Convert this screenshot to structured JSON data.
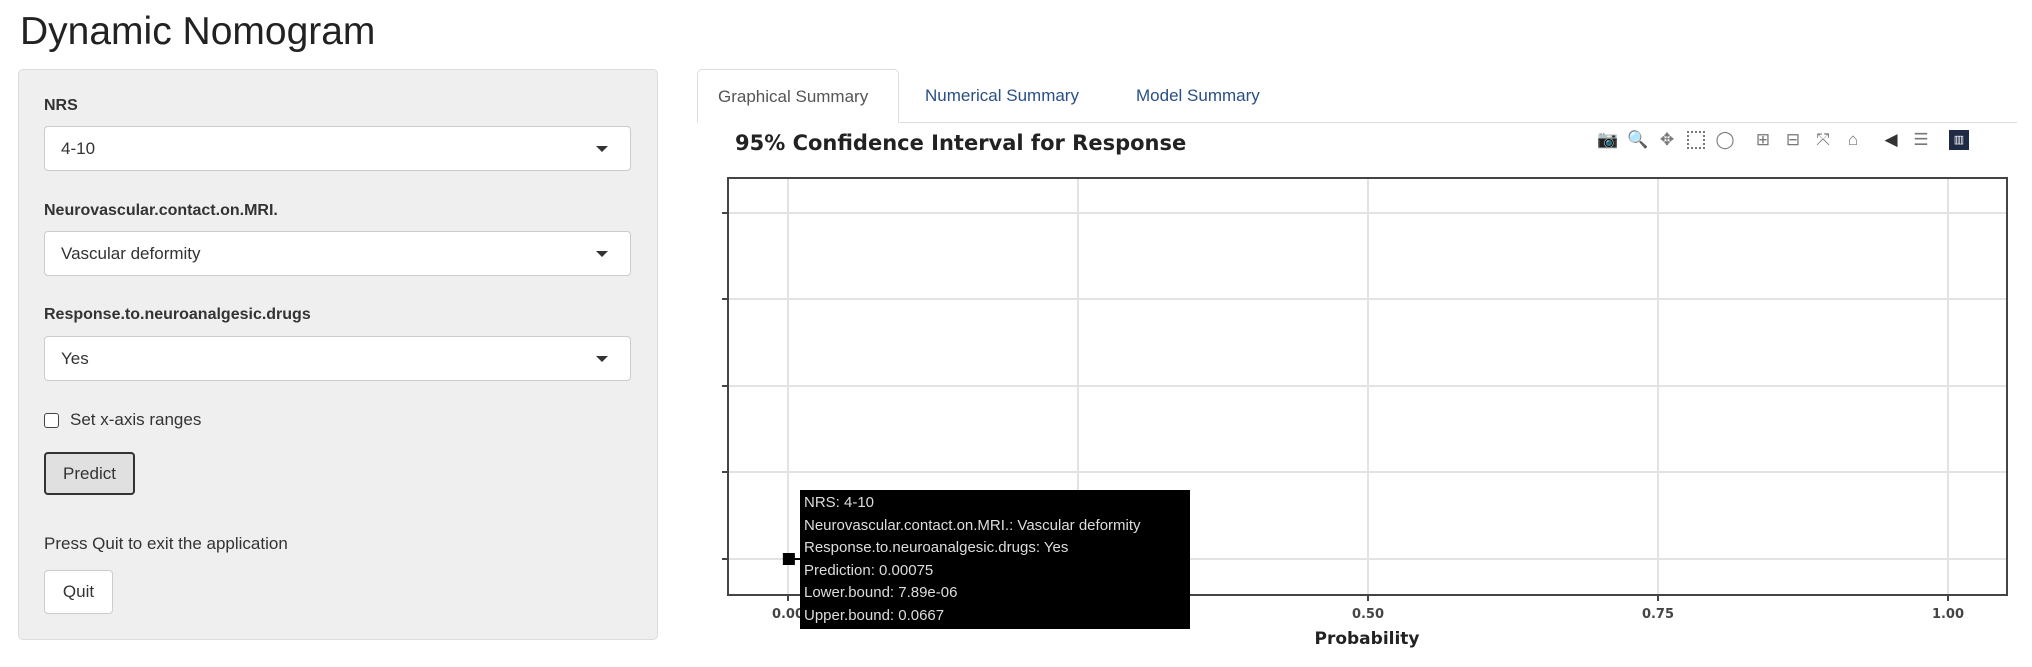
{
  "app": {
    "title": "Dynamic Nomogram"
  },
  "sidebar": {
    "nrs": {
      "label": "NRS",
      "value": "4-10"
    },
    "neuro": {
      "label": "Neurovascular.contact.on.MRI.",
      "value": "Vascular deformity"
    },
    "response": {
      "label": "Response.to.neuroanalgesic.drugs",
      "value": "Yes"
    },
    "xaxis_checkbox": {
      "label": "Set x-axis ranges",
      "checked": false
    },
    "predict_label": "Predict",
    "quit_text": "Press Quit to exit the application",
    "quit_label": "Quit"
  },
  "tabs": [
    {
      "label": "Graphical Summary",
      "active": true
    },
    {
      "label": "Numerical Summary"
    },
    {
      "label": "Model Summary"
    }
  ],
  "toolbar": [
    "camera-icon",
    "zoom-icon",
    "pan-icon",
    "box-select-icon",
    "lasso-select-icon",
    "zoom-in-icon",
    "zoom-out-icon",
    "autoscale-icon",
    "reset-axes-icon",
    "show-closest-icon",
    "compare-data-icon",
    "plotly-logo-icon"
  ],
  "chart_data": {
    "type": "scatter",
    "title": "95% Confidence Interval for Response",
    "xlabel": "Probability",
    "xlim": [
      0,
      1
    ],
    "xticks": [
      "0.00",
      "0.25",
      "0.50",
      "0.75",
      "1.00"
    ],
    "grid": true,
    "points": [
      {
        "x": 0.00075,
        "lower": 7.89e-06,
        "upper": 0.0667
      }
    ]
  },
  "tooltip": {
    "lines": [
      "NRS: 4-10",
      "Neurovascular.contact.on.MRI.: Vascular deformity",
      "Response.to.neuroanalgesic.drugs: Yes",
      "Prediction: 0.00075",
      "Lower.bound: 7.89e-06",
      "Upper.bound: 0.0667"
    ]
  }
}
